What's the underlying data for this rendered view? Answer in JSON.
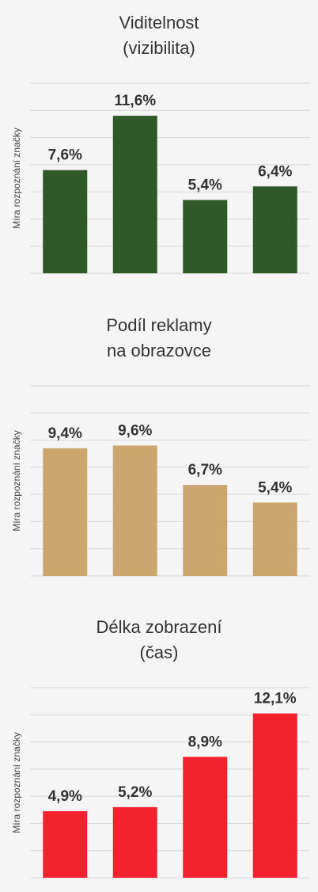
{
  "chart_data": [
    {
      "type": "bar",
      "title": [
        "Viditelnost",
        "(vizibilita)"
      ],
      "y_label": "Míra rozpoznání značky",
      "values": [
        7.6,
        11.6,
        5.4,
        6.4
      ],
      "value_labels": [
        "7,6%",
        "11,6%",
        "5,4%",
        "6,4%"
      ],
      "color": "#2f5a28",
      "ylim": [
        0,
        14
      ],
      "yticks": [
        0,
        2,
        4,
        6,
        8,
        10,
        12,
        14
      ],
      "grid": true
    },
    {
      "type": "bar",
      "title": [
        "Podíl reklamy",
        "na obrazovce"
      ],
      "y_label": "Míra rozpoznání značky",
      "values": [
        9.4,
        9.6,
        6.7,
        5.4
      ],
      "value_labels": [
        "9,4%",
        "9,6%",
        "6,7%",
        "5,4%"
      ],
      "color": "#cba66f",
      "ylim": [
        0,
        14
      ],
      "yticks": [
        0,
        2,
        4,
        6,
        8,
        10,
        12,
        14
      ],
      "grid": true
    },
    {
      "type": "bar",
      "title": [
        "Délka zobrazení",
        "(čas)"
      ],
      "y_label": "Míra rozpoznání značky",
      "values": [
        4.9,
        5.2,
        8.9,
        12.1
      ],
      "value_labels": [
        "4,9%",
        "5,2%",
        "8,9%",
        "12,1%"
      ],
      "color": "#f2232f",
      "ylim": [
        0,
        14
      ],
      "yticks": [
        0,
        2,
        4,
        6,
        8,
        10,
        12,
        14
      ],
      "grid": true
    }
  ]
}
